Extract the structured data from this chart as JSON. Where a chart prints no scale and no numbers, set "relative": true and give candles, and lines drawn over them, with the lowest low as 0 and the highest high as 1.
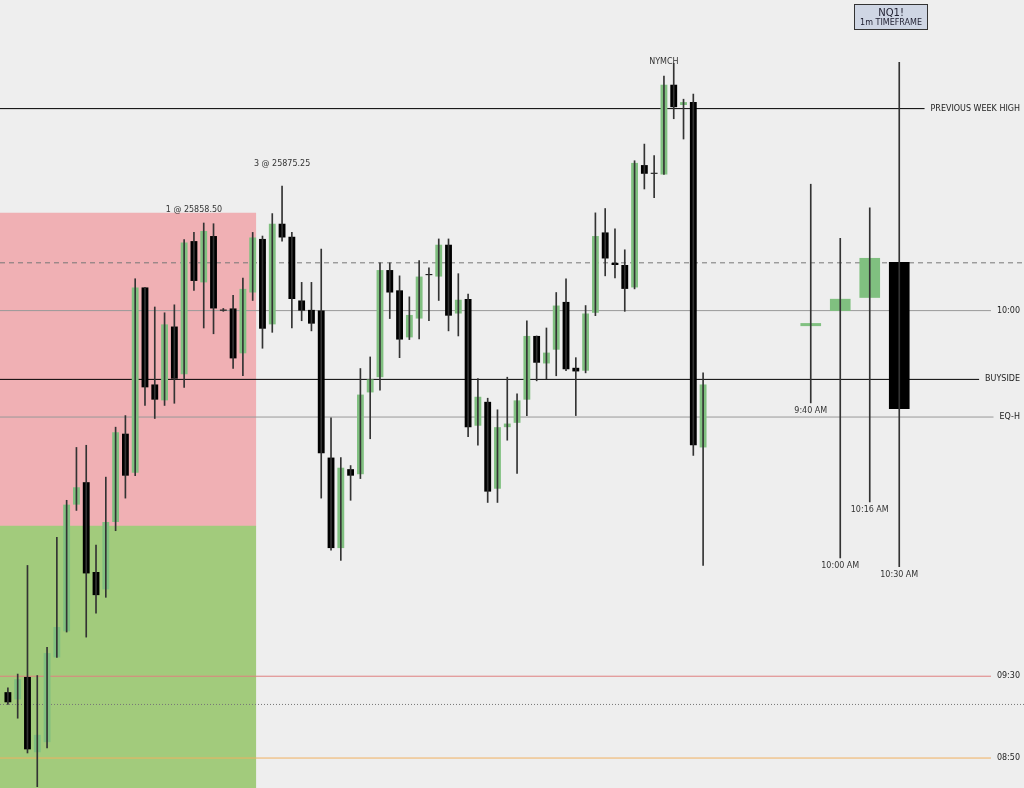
{
  "chart_data": [
    {
      "type": "candlestick",
      "relative": true,
      "categories": [
        null,
        null,
        null,
        null,
        null,
        null,
        null,
        null,
        null,
        null,
        null,
        null,
        null,
        null,
        null,
        null,
        null,
        null,
        null,
        null,
        null,
        null,
        null,
        null,
        null,
        null,
        null,
        null,
        null,
        null,
        null,
        null,
        null,
        null,
        null,
        null,
        null,
        null,
        null,
        null,
        null,
        null,
        null,
        null,
        null,
        null,
        null,
        null,
        null,
        null,
        null,
        null,
        null,
        null,
        null,
        null,
        null,
        null,
        null,
        null,
        null,
        null,
        null,
        null,
        null,
        null,
        null,
        null,
        null,
        null,
        null,
        null
      ],
      "ohlc": [
        [
          0.131,
          0.137,
          0.114,
          0.117
        ],
        [
          0.121,
          0.156,
          0.095,
          0.149
        ],
        [
          0.152,
          0.306,
          0.047,
          0.052
        ],
        [
          0.048,
          0.154,
          0,
          0.072
        ],
        [
          0.062,
          0.193,
          0.054,
          0.185
        ],
        [
          0.179,
          0.345,
          0.179,
          0.221
        ],
        [
          0.215,
          0.396,
          0.214,
          0.39
        ],
        [
          0.39,
          0.469,
          0.382,
          0.414
        ],
        [
          0.421,
          0.472,
          0.207,
          0.295
        ],
        [
          0.297,
          0.334,
          0.24,
          0.265
        ],
        [
          0.273,
          0.428,
          0.262,
          0.366
        ],
        [
          0.366,
          0.497,
          0.354,
          0.49
        ],
        [
          0.488,
          0.513,
          0.399,
          0.43
        ],
        [
          0.434,
          0.702,
          0.43,
          0.69
        ],
        [
          0.69,
          0.69,
          0.527,
          0.552
        ],
        [
          0.556,
          0.663,
          0.509,
          0.535
        ],
        [
          0.534,
          0.655,
          0.527,
          0.639
        ],
        [
          0.636,
          0.666,
          0.53,
          0.564
        ],
        [
          0.57,
          0.756,
          0.552,
          0.752
        ],
        [
          0.754,
          0.766,
          0.686,
          0.699
        ],
        [
          0.697,
          0.779,
          0.634,
          0.768
        ],
        [
          0.761,
          0.778,
          0.626,
          0.661
        ],
        [
          0.659,
          0.661,
          0.657,
          0.658
        ],
        [
          0.661,
          0.679,
          0.578,
          0.592
        ],
        [
          0.599,
          0.703,
          0.568,
          0.688
        ],
        [
          0.683,
          0.766,
          0.672,
          0.759
        ],
        [
          0.757,
          0.761,
          0.606,
          0.633
        ],
        [
          0.639,
          0.792,
          0.628,
          0.778
        ],
        [
          0.778,
          0.83,
          0.754,
          0.759
        ],
        [
          0.76,
          0.766,
          0.634,
          0.674
        ],
        [
          0.672,
          0.697,
          0.644,
          0.658
        ],
        [
          0.659,
          0.697,
          0.63,
          0.64
        ],
        [
          0.658,
          0.743,
          0.399,
          0.461
        ],
        [
          0.455,
          0.51,
          0.327,
          0.33
        ],
        [
          0.33,
          0.455,
          0.313,
          0.441
        ],
        [
          0.439,
          0.444,
          0.396,
          0.43
        ],
        [
          0.432,
          0.578,
          0.426,
          0.542
        ],
        [
          0.545,
          0.594,
          0.481,
          0.563
        ],
        [
          0.566,
          0.724,
          0.548,
          0.714
        ],
        [
          0.714,
          0.724,
          0.647,
          0.683
        ],
        [
          0.686,
          0.706,
          0.593,
          0.618
        ],
        [
          0.621,
          0.677,
          0.618,
          0.652
        ],
        [
          0.647,
          0.727,
          0.619,
          0.705
        ],
        [
          0.708,
          0.717,
          0.644,
          0.707
        ],
        [
          0.705,
          0.757,
          0.672,
          0.749
        ],
        [
          0.749,
          0.757,
          0.63,
          0.651
        ],
        [
          0.654,
          0.709,
          0.623,
          0.673
        ],
        [
          0.674,
          0.681,
          0.484,
          0.497
        ],
        [
          0.499,
          0.564,
          0.472,
          0.539
        ],
        [
          0.532,
          0.537,
          0.393,
          0.408
        ],
        [
          0.412,
          0.521,
          0.393,
          0.497
        ],
        [
          0.497,
          0.566,
          0.479,
          0.502
        ],
        [
          0.503,
          0.543,
          0.433,
          0.534
        ],
        [
          0.535,
          0.644,
          0.513,
          0.623
        ],
        [
          0.623,
          0.623,
          0.561,
          0.586
        ],
        [
          0.585,
          0.634,
          0.564,
          0.6
        ],
        [
          0.604,
          0.683,
          0.568,
          0.665
        ],
        [
          0.67,
          0.702,
          0.575,
          0.577
        ],
        [
          0.579,
          0.593,
          0.513,
          0.574
        ],
        [
          0.575,
          0.665,
          0.572,
          0.654
        ],
        [
          0.655,
          0.793,
          0.651,
          0.761
        ],
        [
          0.766,
          0.799,
          0.706,
          0.73
        ],
        [
          0.724,
          0.771,
          0.703,
          0.721
        ],
        [
          0.721,
          0.742,
          0.657,
          0.688
        ],
        [
          0.69,
          0.865,
          0.688,
          0.862
        ],
        [
          0.859,
          0.888,
          0.826,
          0.847
        ],
        [
          0.848,
          0.872,
          0.814,
          0.847
        ],
        [
          0.846,
          0.982,
          0.846,
          0.97
        ],
        [
          0.97,
          1,
          0.923,
          0.939
        ],
        [
          0.942,
          0.95,
          0.895,
          0.946
        ],
        [
          0.946,
          0.957,
          0.458,
          0.472
        ],
        [
          0.469,
          0.572,
          0.306,
          0.556
        ]
      ],
      "colors": [
        "#000000",
        "#80c080",
        "#000000",
        "#80c080",
        "#80c080",
        "#80c080",
        "#80c080",
        "#80c080",
        "#000000",
        "#000000",
        "#80c080",
        "#80c080",
        "#000000",
        "#80c080",
        "#000000",
        "#000000",
        "#80c080",
        "#000000",
        "#80c080",
        "#000000",
        "#80c080",
        "#000000",
        "#000000",
        "#000000",
        "#80c080",
        "#80c080",
        "#000000",
        "#80c080",
        "#000000",
        "#000000",
        "#000000",
        "#000000",
        "#000000",
        "#000000",
        "#80c080",
        "#000000",
        "#80c080",
        "#80c080",
        "#80c080",
        "#000000",
        "#000000",
        "#80c080",
        "#80c080",
        "#000000",
        "#80c080",
        "#000000",
        "#80c080",
        "#000000",
        "#80c080",
        "#000000",
        "#80c080",
        "#80c080",
        "#80c080",
        "#80c080",
        "#000000",
        "#80c080",
        "#80c080",
        "#000000",
        "#000000",
        "#80c080",
        "#80c080",
        "#000000",
        "#000000",
        "#000000",
        "#80c080",
        "#000000",
        "#000000",
        "#80c080",
        "#000000",
        "#80c080",
        "#000000",
        "#80c080"
      ],
      "bands": [
        {
          "axis": "y",
          "from": 0.361,
          "to": 0.793,
          "color": "#f0b0b4"
        },
        {
          "axis": "y",
          "from": 0,
          "to": 0.361,
          "color": "#a2cb7c"
        }
      ],
      "ref_lines": [
        {
          "axis": "y",
          "value": 0.937,
          "label": "PREVIOUS WEEK HIGH",
          "color": "#000000",
          "line_style": "solid"
        },
        {
          "axis": "y",
          "value": 0.563,
          "label": "BUYSIDE",
          "color": "#000000",
          "line_style": "solid"
        },
        {
          "axis": "y",
          "value": 0.658,
          "color": "#999999",
          "line_style": "solid"
        },
        {
          "axis": "y",
          "value": 0.511,
          "label": "EQ-H",
          "color": "#999999",
          "line_style": "solid"
        },
        {
          "axis": "y",
          "value": 0.153,
          "color": "#e08080",
          "line_style": "solid"
        },
        {
          "axis": "y",
          "value": 0.04,
          "color": "#f0b060",
          "line_style": "solid"
        },
        {
          "axis": "y",
          "value": 0.724,
          "color": "#777777",
          "line_style": "dashed"
        },
        {
          "axis": "y",
          "value": 0.114,
          "color": "#777777",
          "line_style": "dotted"
        }
      ],
      "annotations": [
        "1 @ 25858.50",
        "3 @ 25875.25",
        "NYMCH",
        {
          "text": "10:00",
          "y": 0.658
        },
        {
          "text": "09:30",
          "y": 0.153
        },
        {
          "text": "08:50",
          "y": 0.04
        }
      ]
    },
    {
      "type": "candlestick",
      "title": "NQ1!",
      "subtitle": "1m TIMEFRAME",
      "relative": true,
      "categories": [
        null,
        null,
        null,
        null
      ],
      "ohlc": [
        [
          0.477,
          0.758,
          0.325,
          0.483
        ],
        [
          0.507,
          0.651,
          0.018,
          0.531
        ],
        [
          0.533,
          0.711,
          0.129,
          0.612
        ],
        [
          0.604,
          1,
          0,
          0.313
        ]
      ],
      "colors": [
        "#80c080",
        "#80c080",
        "#80c080",
        "#000000"
      ],
      "annotations": [
        "9:40 AM",
        "10:00 AM",
        "10:16 AM",
        "10:30 AM"
      ]
    }
  ]
}
